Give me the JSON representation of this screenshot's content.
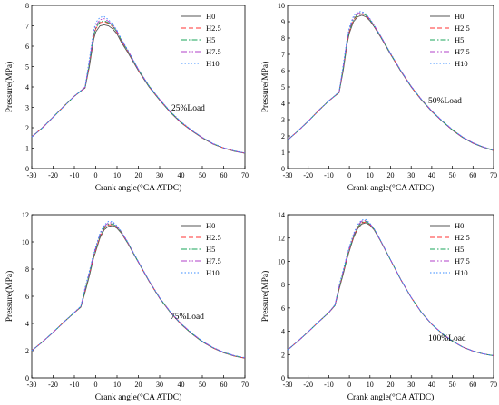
{
  "figure": {
    "background": "#ffffff"
  },
  "chart_data": [
    {
      "type": "line",
      "annotation": "25%Load",
      "xlabel": "Crank angle(°CA ATDC)",
      "ylabel": "Pressure(MPa)",
      "xlim": [
        -30,
        70
      ],
      "ylim": [
        0,
        8
      ],
      "xticks": [
        -30,
        -20,
        -10,
        0,
        10,
        20,
        30,
        40,
        50,
        60,
        70
      ],
      "yticks": [
        0,
        1,
        2,
        3,
        4,
        5,
        6,
        7,
        8
      ],
      "grid": false,
      "legend_position": "top-right",
      "x": [
        -30,
        -25,
        -20,
        -15,
        -10,
        -7,
        -5,
        -3,
        -1,
        0,
        2,
        4,
        6,
        8,
        10,
        12,
        15,
        20,
        25,
        30,
        35,
        40,
        45,
        50,
        55,
        60,
        65,
        70
      ],
      "series": [
        {
          "name": "H0",
          "values": [
            1.55,
            2.0,
            2.52,
            3.05,
            3.55,
            3.8,
            3.95,
            5.0,
            6.3,
            6.7,
            7.0,
            7.05,
            7.0,
            6.85,
            6.6,
            6.2,
            5.7,
            4.8,
            4.0,
            3.35,
            2.75,
            2.25,
            1.85,
            1.5,
            1.2,
            1.0,
            0.85,
            0.75
          ]
        },
        {
          "name": "H2.5",
          "values": [
            1.55,
            2.0,
            2.52,
            3.05,
            3.55,
            3.8,
            3.97,
            5.1,
            6.45,
            6.85,
            7.15,
            7.2,
            7.12,
            6.95,
            6.68,
            6.28,
            5.76,
            4.84,
            4.03,
            3.37,
            2.77,
            2.27,
            1.86,
            1.51,
            1.21,
            1.01,
            0.86,
            0.76
          ]
        },
        {
          "name": "H5",
          "values": [
            1.55,
            2.0,
            2.52,
            3.05,
            3.55,
            3.8,
            3.98,
            5.15,
            6.5,
            6.9,
            7.2,
            7.25,
            7.15,
            6.98,
            6.7,
            6.3,
            5.78,
            4.85,
            4.04,
            3.38,
            2.78,
            2.28,
            1.87,
            1.52,
            1.22,
            1.01,
            0.86,
            0.76
          ]
        },
        {
          "name": "H7.5",
          "values": [
            1.55,
            2.0,
            2.52,
            3.05,
            3.55,
            3.81,
            4.0,
            5.25,
            6.6,
            7.0,
            7.3,
            7.35,
            7.22,
            7.03,
            6.74,
            6.33,
            5.8,
            4.86,
            4.05,
            3.39,
            2.79,
            2.29,
            1.87,
            1.52,
            1.22,
            1.01,
            0.86,
            0.76
          ]
        },
        {
          "name": "H10",
          "values": [
            1.55,
            2.0,
            2.52,
            3.05,
            3.55,
            3.82,
            4.02,
            5.35,
            6.75,
            7.15,
            7.42,
            7.45,
            7.3,
            7.08,
            6.78,
            6.36,
            5.82,
            4.87,
            4.06,
            3.4,
            2.8,
            2.3,
            1.88,
            1.53,
            1.23,
            1.02,
            0.87,
            0.77
          ]
        }
      ]
    },
    {
      "type": "line",
      "annotation": "50%Load",
      "xlabel": "Crank angle(°CA ATDC)",
      "ylabel": "Pressure(MPa)",
      "xlim": [
        -30,
        70
      ],
      "ylim": [
        0,
        10
      ],
      "xticks": [
        -30,
        -20,
        -10,
        0,
        10,
        20,
        30,
        40,
        50,
        60,
        70
      ],
      "yticks": [
        0,
        1,
        2,
        3,
        4,
        5,
        6,
        7,
        8,
        9,
        10
      ],
      "grid": false,
      "legend_position": "top-right",
      "x": [
        -30,
        -25,
        -20,
        -15,
        -10,
        -7,
        -5,
        -3,
        -1,
        0,
        2,
        4,
        6,
        8,
        10,
        12,
        15,
        20,
        25,
        30,
        35,
        40,
        45,
        50,
        55,
        60,
        65,
        70
      ],
      "series": [
        {
          "name": "H0",
          "values": [
            1.75,
            2.3,
            2.9,
            3.55,
            4.15,
            4.45,
            4.65,
            6.0,
            7.7,
            8.3,
            9.0,
            9.3,
            9.4,
            9.3,
            9.05,
            8.7,
            8.1,
            7.0,
            5.95,
            5.0,
            4.2,
            3.5,
            2.9,
            2.35,
            1.9,
            1.55,
            1.3,
            1.1
          ]
        },
        {
          "name": "H2.5",
          "values": [
            1.75,
            2.3,
            2.9,
            3.55,
            4.15,
            4.45,
            4.67,
            6.1,
            7.8,
            8.4,
            9.1,
            9.4,
            9.48,
            9.36,
            9.1,
            8.74,
            8.14,
            7.03,
            5.97,
            5.02,
            4.22,
            3.52,
            2.92,
            2.37,
            1.92,
            1.57,
            1.31,
            1.11
          ]
        },
        {
          "name": "H5",
          "values": [
            1.75,
            2.3,
            2.9,
            3.55,
            4.15,
            4.46,
            4.68,
            6.15,
            7.85,
            8.45,
            9.15,
            9.45,
            9.52,
            9.4,
            9.12,
            8.76,
            8.15,
            7.04,
            5.98,
            5.03,
            4.22,
            3.52,
            2.92,
            2.37,
            1.92,
            1.57,
            1.31,
            1.11
          ]
        },
        {
          "name": "H7.5",
          "values": [
            1.75,
            2.3,
            2.9,
            3.55,
            4.15,
            4.46,
            4.7,
            6.25,
            7.95,
            8.55,
            9.25,
            9.52,
            9.58,
            9.44,
            9.15,
            8.78,
            8.17,
            7.05,
            5.99,
            5.04,
            4.23,
            3.53,
            2.93,
            2.38,
            1.93,
            1.58,
            1.32,
            1.12
          ]
        },
        {
          "name": "H10",
          "values": [
            1.75,
            2.3,
            2.9,
            3.55,
            4.15,
            4.47,
            4.72,
            6.35,
            8.05,
            8.65,
            9.35,
            9.6,
            9.63,
            9.48,
            9.18,
            8.8,
            8.18,
            7.06,
            6.0,
            5.05,
            4.24,
            3.54,
            2.94,
            2.39,
            1.94,
            1.58,
            1.32,
            1.12
          ]
        }
      ]
    },
    {
      "type": "line",
      "annotation": "75%Load",
      "xlabel": "Crank angle(°CA ATDC)",
      "ylabel": "Pressure(MPa)",
      "xlim": [
        -30,
        70
      ],
      "ylim": [
        0,
        12
      ],
      "xticks": [
        -30,
        -20,
        -10,
        0,
        10,
        20,
        30,
        40,
        50,
        60,
        70
      ],
      "yticks": [
        0,
        2,
        4,
        6,
        8,
        10,
        12
      ],
      "grid": false,
      "legend_position": "top-right",
      "x": [
        -30,
        -25,
        -20,
        -15,
        -10,
        -7,
        -5,
        -3,
        -1,
        0,
        2,
        4,
        6,
        8,
        10,
        12,
        15,
        20,
        25,
        30,
        35,
        40,
        45,
        50,
        55,
        60,
        65,
        70
      ],
      "series": [
        {
          "name": "H0",
          "values": [
            2.0,
            2.65,
            3.35,
            4.1,
            4.8,
            5.2,
            6.3,
            7.5,
            8.8,
            9.3,
            10.3,
            10.9,
            11.15,
            11.2,
            11.0,
            10.65,
            9.9,
            8.5,
            7.1,
            5.85,
            4.8,
            3.95,
            3.25,
            2.65,
            2.2,
            1.85,
            1.6,
            1.45
          ]
        },
        {
          "name": "H2.5",
          "values": [
            2.0,
            2.65,
            3.35,
            4.1,
            4.8,
            5.22,
            6.4,
            7.6,
            8.9,
            9.4,
            10.4,
            11.0,
            11.25,
            11.28,
            11.06,
            10.7,
            9.93,
            8.52,
            7.12,
            5.87,
            4.82,
            3.97,
            3.27,
            2.67,
            2.21,
            1.86,
            1.61,
            1.46
          ]
        },
        {
          "name": "H5",
          "values": [
            2.0,
            2.65,
            3.35,
            4.1,
            4.8,
            5.23,
            6.45,
            7.65,
            8.95,
            9.45,
            10.45,
            11.05,
            11.3,
            11.32,
            11.08,
            10.72,
            9.95,
            8.53,
            7.13,
            5.88,
            4.83,
            3.98,
            3.28,
            2.68,
            2.22,
            1.87,
            1.62,
            1.47
          ]
        },
        {
          "name": "H7.5",
          "values": [
            2.0,
            2.65,
            3.35,
            4.1,
            4.81,
            5.25,
            6.55,
            7.75,
            9.05,
            9.55,
            10.55,
            11.15,
            11.4,
            11.4,
            11.13,
            10.75,
            9.97,
            8.54,
            7.14,
            5.89,
            4.84,
            3.99,
            3.29,
            2.69,
            2.23,
            1.88,
            1.63,
            1.48
          ]
        },
        {
          "name": "H10",
          "values": [
            2.0,
            2.65,
            3.35,
            4.1,
            4.82,
            5.27,
            6.65,
            7.85,
            9.15,
            9.65,
            10.65,
            11.25,
            11.5,
            11.48,
            11.18,
            10.78,
            9.99,
            8.55,
            7.15,
            5.9,
            4.85,
            4.0,
            3.3,
            2.7,
            2.24,
            1.89,
            1.64,
            1.49
          ]
        }
      ]
    },
    {
      "type": "line",
      "annotation": "100%Load",
      "xlabel": "Crank angle(°CA ATDC)",
      "ylabel": "Pressure(MPa)",
      "xlim": [
        -30,
        70
      ],
      "ylim": [
        0,
        14
      ],
      "xticks": [
        -30,
        -20,
        -10,
        0,
        10,
        20,
        30,
        40,
        50,
        60,
        70
      ],
      "yticks": [
        0,
        2,
        4,
        6,
        8,
        10,
        12,
        14
      ],
      "grid": false,
      "legend_position": "top-right",
      "x": [
        -30,
        -25,
        -20,
        -15,
        -10,
        -7,
        -5,
        -3,
        -1,
        0,
        2,
        4,
        6,
        8,
        10,
        12,
        15,
        20,
        25,
        30,
        35,
        40,
        45,
        50,
        55,
        60,
        65,
        70
      ],
      "series": [
        {
          "name": "H0",
          "values": [
            2.4,
            3.15,
            3.95,
            4.8,
            5.6,
            6.2,
            7.6,
            8.9,
            10.3,
            10.9,
            12.0,
            12.8,
            13.2,
            13.3,
            13.1,
            12.7,
            11.8,
            10.1,
            8.4,
            6.9,
            5.6,
            4.6,
            3.8,
            3.15,
            2.65,
            2.3,
            2.05,
            1.9
          ]
        },
        {
          "name": "H2.5",
          "values": [
            2.4,
            3.15,
            3.95,
            4.8,
            5.6,
            6.22,
            7.7,
            9.0,
            10.4,
            11.0,
            12.1,
            12.9,
            13.3,
            13.38,
            13.15,
            12.74,
            11.82,
            10.11,
            8.41,
            6.9,
            5.6,
            4.6,
            3.8,
            3.15,
            2.65,
            2.3,
            2.05,
            1.9
          ]
        },
        {
          "name": "H5",
          "values": [
            2.4,
            3.15,
            3.95,
            4.8,
            5.6,
            6.23,
            7.75,
            9.05,
            10.45,
            11.05,
            12.15,
            12.95,
            13.35,
            13.42,
            13.18,
            12.76,
            11.83,
            10.12,
            8.41,
            6.9,
            5.6,
            4.6,
            3.8,
            3.15,
            2.65,
            2.3,
            2.05,
            1.9
          ]
        },
        {
          "name": "H7.5",
          "values": [
            2.4,
            3.15,
            3.95,
            4.8,
            5.61,
            6.25,
            7.85,
            9.15,
            10.55,
            11.15,
            12.25,
            13.05,
            13.45,
            13.5,
            13.22,
            12.78,
            11.84,
            10.12,
            8.42,
            6.91,
            5.61,
            4.61,
            3.81,
            3.16,
            2.66,
            2.31,
            2.06,
            1.91
          ]
        },
        {
          "name": "H10",
          "values": [
            2.4,
            3.15,
            3.95,
            4.8,
            5.62,
            6.27,
            7.95,
            9.25,
            10.65,
            11.25,
            12.35,
            13.15,
            13.55,
            13.58,
            13.26,
            12.8,
            11.85,
            10.13,
            8.42,
            6.91,
            5.61,
            4.61,
            3.81,
            3.16,
            2.66,
            2.31,
            2.06,
            1.91
          ]
        }
      ]
    }
  ],
  "series_styles": [
    {
      "color": "#555555",
      "dash": ""
    },
    {
      "color": "#ff3333",
      "dash": "5,3"
    },
    {
      "color": "#1aa55a",
      "dash": "6,2,1.5,2"
    },
    {
      "color": "#b040c8",
      "dash": "6,2,1.5,2,1.5,2"
    },
    {
      "color": "#3a8cff",
      "dash": "1.5,2"
    }
  ]
}
